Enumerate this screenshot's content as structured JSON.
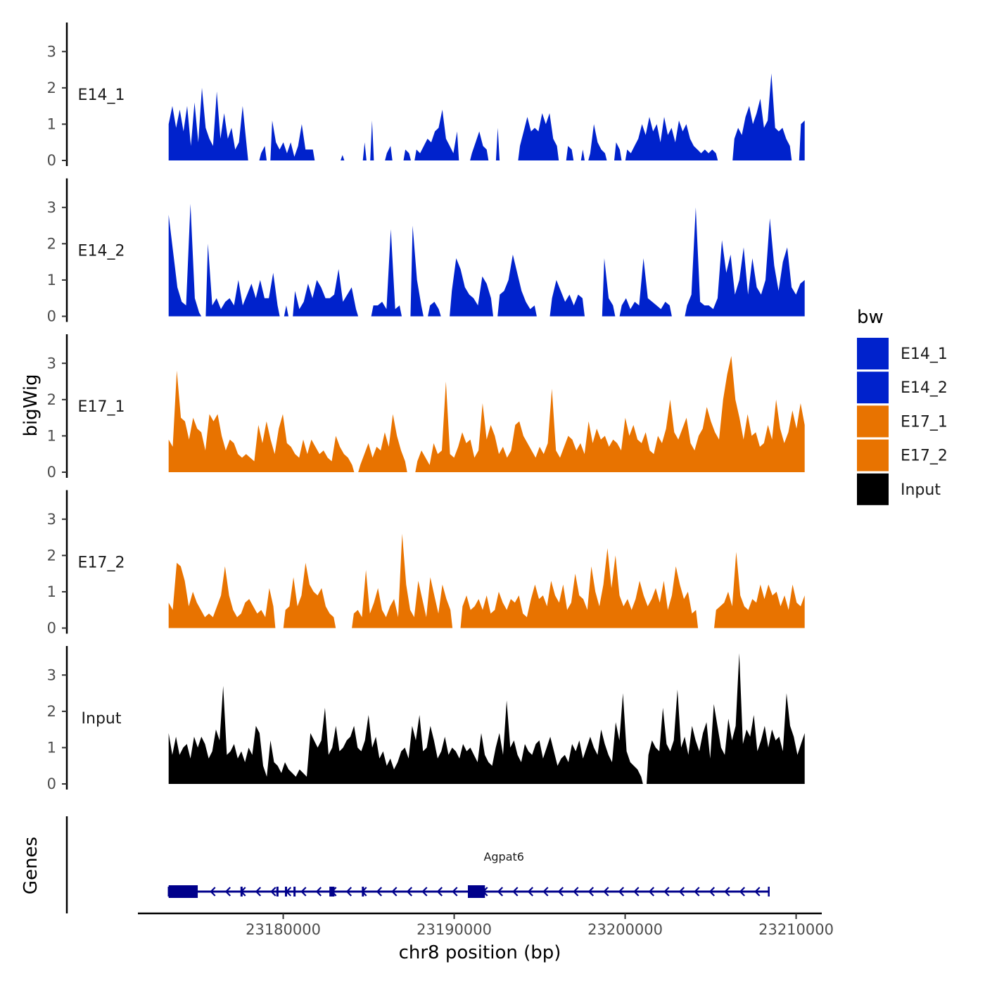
{
  "chart_data": {
    "type": "area",
    "ylabel": "bigWig",
    "xlabel": "chr8 position (bp)",
    "xlim": [
      23171500,
      23211500
    ],
    "ylim": [
      0,
      3.8
    ],
    "y_ticks": [
      0,
      1,
      2,
      3
    ],
    "x_ticks": [
      23180000,
      23190000,
      23200000,
      23210000
    ],
    "x_tick_labels": [
      "23180000",
      "23190000",
      "23200000",
      "23210000"
    ],
    "data_range": [
      23173300,
      23210500
    ],
    "legend": {
      "title": "bw",
      "position": "right",
      "entries": [
        {
          "label": "E14_1",
          "color": "#0022CC"
        },
        {
          "label": "E14_2",
          "color": "#0022CC"
        },
        {
          "label": "E17_1",
          "color": "#E87300"
        },
        {
          "label": "E17_2",
          "color": "#E87300"
        },
        {
          "label": "Input",
          "color": "#000000"
        }
      ]
    },
    "tracks": [
      {
        "name": "E14_1",
        "color": "#0022CC",
        "values": [
          1.0,
          1.5,
          0.9,
          1.4,
          0.8,
          1.5,
          0.4,
          1.6,
          0.5,
          2.0,
          0.9,
          0.6,
          0.4,
          1.9,
          0.6,
          1.3,
          0.6,
          0.9,
          0.3,
          0.5,
          1.5,
          0.5,
          0,
          0,
          0,
          0.2,
          0.4,
          0,
          1.1,
          0.5,
          0.3,
          0.5,
          0.2,
          0.5,
          0.1,
          0.4,
          1.0,
          0.3,
          0.3,
          0.3,
          0,
          0,
          0,
          0,
          0,
          0,
          0,
          0.15,
          0,
          0,
          0,
          0,
          0,
          0.5,
          0,
          1.1,
          0,
          0,
          0,
          0.2,
          0.4,
          0,
          0,
          0,
          0.3,
          0.2,
          0,
          0.3,
          0.2,
          0.4,
          0.6,
          0.5,
          0.8,
          0.9,
          1.4,
          0.6,
          0.4,
          0.2,
          0.8,
          0,
          0,
          0,
          0.2,
          0.5,
          0.8,
          0.4,
          0.3,
          0,
          0,
          0.9,
          0,
          0,
          0,
          0,
          0,
          0.4,
          0.8,
          1.2,
          0.8,
          0.9,
          0.8,
          1.3,
          1.0,
          1.3,
          0.6,
          0.4,
          0,
          0,
          0.4,
          0.3,
          0,
          0,
          0.3,
          0,
          0.2,
          1.0,
          0.5,
          0.3,
          0.2,
          0,
          0,
          0.5,
          0.3,
          0,
          0.3,
          0.2,
          0.4,
          0.6,
          1.0,
          0.7,
          1.2,
          0.8,
          1.0,
          0.5,
          1.2,
          0.7,
          0.9,
          0.5,
          1.1,
          0.8,
          1.0,
          0.6,
          0.4,
          0.3,
          0.2,
          0.3,
          0.2,
          0.3,
          0.2,
          0,
          0,
          0,
          0,
          0.6,
          0.9,
          0.7,
          1.2,
          1.5,
          1.0,
          1.3,
          1.7,
          0.9,
          1.1,
          2.4,
          0.9,
          0.8,
          0.9,
          0.6,
          0.4,
          0,
          0,
          1.0,
          1.1
        ]
      },
      {
        "name": "E14_2",
        "color": "#0022CC",
        "values": [
          2.8,
          1.8,
          0.8,
          0.4,
          0.3,
          3.1,
          0.5,
          0.1,
          0,
          2.0,
          0.3,
          0.5,
          0.2,
          0.4,
          0.5,
          0.3,
          1.0,
          0.3,
          0.6,
          0.9,
          0.5,
          1.0,
          0.5,
          0.5,
          1.2,
          0.3,
          0,
          0.3,
          0,
          0.7,
          0.2,
          0.4,
          0.9,
          0.5,
          1.0,
          0.8,
          0.5,
          0.5,
          0.6,
          1.3,
          0.4,
          0.6,
          0.8,
          0.2,
          0,
          0,
          0,
          0.3,
          0.3,
          0.4,
          0.2,
          2.4,
          0.2,
          0.3,
          0,
          0,
          2.5,
          1.0,
          0.3,
          0,
          0.3,
          0.4,
          0.2,
          0,
          0,
          0.7,
          1.6,
          1.3,
          0.8,
          0.6,
          0.5,
          0.3,
          1.1,
          0.9,
          0.5,
          0,
          0.6,
          0.7,
          1.0,
          1.7,
          1.2,
          0.7,
          0.4,
          0.2,
          0.3,
          0,
          0,
          0,
          0.5,
          1.0,
          0.7,
          0.4,
          0.6,
          0.3,
          0.6,
          0.5,
          0,
          0,
          0,
          0,
          1.6,
          0.5,
          0.3,
          0,
          0.3,
          0.5,
          0.2,
          0.4,
          0.3,
          1.6,
          0.5,
          0.4,
          0.3,
          0.2,
          0.4,
          0.3,
          0,
          0,
          0,
          0.3,
          0.6,
          3.0,
          0.4,
          0.3,
          0.3,
          0.2,
          0.5,
          2.1,
          1.2,
          1.7,
          0.6,
          1.0,
          1.9,
          0.6,
          1.6,
          0.8,
          0.6,
          1.0,
          2.7,
          1.4,
          0.7,
          1.5,
          1.9,
          0.8,
          0.6,
          0.9,
          1.0
        ]
      },
      {
        "name": "E17_1",
        "color": "#E87300",
        "values": [
          0.9,
          0.7,
          2.8,
          1.5,
          1.4,
          0.9,
          1.5,
          1.2,
          1.1,
          0.6,
          1.6,
          1.4,
          1.6,
          1.0,
          0.6,
          0.9,
          0.8,
          0.5,
          0.4,
          0.5,
          0.4,
          0.3,
          1.3,
          0.8,
          1.4,
          0.9,
          0.5,
          1.2,
          1.6,
          0.8,
          0.7,
          0.5,
          0.4,
          0.9,
          0.5,
          0.9,
          0.7,
          0.5,
          0.6,
          0.4,
          0.3,
          1.0,
          0.7,
          0.5,
          0.4,
          0.2,
          0,
          0.2,
          0.5,
          0.8,
          0.4,
          0.7,
          0.6,
          1.1,
          0.7,
          1.6,
          1.0,
          0.6,
          0.3,
          0,
          0,
          0.3,
          0.6,
          0.4,
          0.2,
          0.8,
          0.5,
          0.6,
          2.5,
          0.5,
          0.4,
          0.7,
          1.1,
          0.8,
          0.9,
          0.4,
          0.6,
          1.9,
          0.9,
          1.3,
          1.0,
          0.5,
          0.7,
          0.4,
          0.6,
          1.3,
          1.4,
          1.0,
          0.8,
          0.6,
          0.4,
          0.7,
          0.5,
          0.8,
          2.3,
          0.6,
          0.4,
          0.7,
          1.0,
          0.9,
          0.6,
          0.8,
          0.5,
          1.4,
          0.8,
          1.2,
          0.9,
          1.0,
          0.7,
          0.9,
          0.8,
          0.6,
          1.5,
          1.0,
          1.3,
          0.9,
          0.8,
          1.1,
          0.6,
          0.5,
          1.0,
          0.8,
          1.2,
          2.0,
          1.1,
          0.9,
          1.2,
          1.5,
          0.8,
          0.6,
          1.0,
          1.2,
          1.8,
          1.4,
          1.1,
          0.9,
          2.0,
          2.7,
          3.2,
          2.0,
          1.5,
          0.9,
          1.6,
          1.0,
          1.1,
          0.7,
          0.8,
          1.3,
          0.9,
          2.0,
          1.2,
          0.8,
          1.1,
          1.7,
          1.2,
          1.9,
          1.3
        ]
      },
      {
        "name": "E17_2",
        "color": "#E87300",
        "values": [
          0.7,
          0.5,
          1.8,
          1.7,
          1.3,
          0.6,
          1.0,
          0.7,
          0.5,
          0.3,
          0.4,
          0.3,
          0.6,
          0.9,
          1.7,
          0.9,
          0.5,
          0.3,
          0.4,
          0.7,
          0.8,
          0.6,
          0.4,
          0.5,
          0.3,
          1.1,
          0.6,
          0,
          0,
          0.5,
          0.6,
          1.4,
          0.6,
          0.9,
          1.8,
          1.2,
          1.0,
          0.9,
          1.1,
          0.6,
          0.4,
          0.3,
          0,
          0,
          0,
          0,
          0.4,
          0.5,
          0.3,
          1.6,
          0.4,
          0.7,
          1.1,
          0.5,
          0.3,
          0.6,
          0.8,
          0.3,
          2.6,
          1.2,
          0.5,
          0.3,
          1.3,
          0.8,
          0.3,
          1.4,
          0.9,
          0.4,
          1.2,
          0.8,
          0.5,
          0,
          0,
          0.6,
          0.9,
          0.5,
          0.6,
          0.8,
          0.5,
          0.9,
          0.4,
          0.5,
          1.0,
          0.7,
          0.5,
          0.8,
          0.7,
          0.9,
          0.4,
          0.3,
          0.8,
          1.2,
          0.8,
          0.9,
          0.6,
          1.3,
          0.9,
          0.7,
          1.2,
          0.5,
          0.7,
          1.5,
          0.9,
          0.8,
          0.5,
          1.7,
          1.0,
          0.6,
          1.2,
          2.2,
          1.1,
          2.0,
          0.9,
          0.6,
          0.8,
          0.5,
          0.8,
          1.3,
          0.9,
          0.6,
          0.8,
          1.1,
          0.7,
          1.3,
          0.5,
          0.9,
          1.7,
          1.2,
          0.8,
          1.0,
          0.4,
          0.5,
          0,
          0,
          0,
          0,
          0.5,
          0.6,
          0.7,
          1.0,
          0.6,
          2.1,
          0.9,
          0.6,
          0.5,
          0.8,
          0.7,
          1.2,
          0.8,
          1.2,
          0.9,
          1.0,
          0.6,
          0.9,
          0.5,
          1.2,
          0.7,
          0.6,
          0.9
        ]
      },
      {
        "name": "Input",
        "color": "#000000",
        "values": [
          1.4,
          0.8,
          1.3,
          0.8,
          1.0,
          1.1,
          0.7,
          1.3,
          1.0,
          1.3,
          1.1,
          0.7,
          0.9,
          1.5,
          1.2,
          2.7,
          0.8,
          0.9,
          1.1,
          0.7,
          0.9,
          0.6,
          1.0,
          0.8,
          1.6,
          1.4,
          0.5,
          0.2,
          1.2,
          0.6,
          0.5,
          0.3,
          0.6,
          0.4,
          0.3,
          0.2,
          0.4,
          0.3,
          0.2,
          1.4,
          1.2,
          1.0,
          1.2,
          2.1,
          0.8,
          1.0,
          1.6,
          0.9,
          1.0,
          1.2,
          1.3,
          1.6,
          1.0,
          0.9,
          1.2,
          1.9,
          1.0,
          1.3,
          0.7,
          0.9,
          0.5,
          0.7,
          0.4,
          0.6,
          0.9,
          1.0,
          0.7,
          1.6,
          1.2,
          1.9,
          0.9,
          1.0,
          1.6,
          1.2,
          0.7,
          0.9,
          1.3,
          0.8,
          1.0,
          0.9,
          0.7,
          1.1,
          0.9,
          1.0,
          0.8,
          0.6,
          1.4,
          0.8,
          0.6,
          0.5,
          1.0,
          1.4,
          0.8,
          2.3,
          1.0,
          1.2,
          0.8,
          0.6,
          1.1,
          0.9,
          0.8,
          1.1,
          1.2,
          0.7,
          1.0,
          1.3,
          0.9,
          0.5,
          0.7,
          0.8,
          0.6,
          1.1,
          0.9,
          1.2,
          0.7,
          1.0,
          1.3,
          1.0,
          0.8,
          1.5,
          1.1,
          0.8,
          0.6,
          1.7,
          1.2,
          2.5,
          0.9,
          0.6,
          0.5,
          0.4,
          0.2,
          0,
          0.8,
          1.2,
          1.0,
          0.9,
          2.1,
          1.1,
          0.9,
          1.2,
          2.6,
          1.0,
          1.3,
          0.8,
          1.6,
          1.2,
          0.9,
          1.4,
          1.7,
          0.7,
          2.2,
          1.6,
          1.0,
          0.8,
          1.8,
          1.2,
          1.6,
          3.6,
          1.1,
          1.5,
          1.3,
          1.9,
          0.9,
          1.2,
          1.6,
          1.0,
          1.5,
          1.2,
          1.3,
          0.9,
          2.5,
          1.6,
          1.3,
          0.8,
          1.1,
          1.4
        ]
      }
    ],
    "gene_track": {
      "label": "Genes",
      "gene": {
        "name": "Agpat6",
        "start": 23173300,
        "end": 23208400,
        "strand": "-",
        "color": "#00008B",
        "exons": [
          [
            23173300,
            23175000
          ],
          [
            23177500,
            23177600
          ],
          [
            23179600,
            23179700
          ],
          [
            23180100,
            23180200
          ],
          [
            23180600,
            23180700
          ],
          [
            23182700,
            23183000
          ],
          [
            23184600,
            23184700
          ],
          [
            23190800,
            23191800
          ]
        ]
      }
    }
  }
}
